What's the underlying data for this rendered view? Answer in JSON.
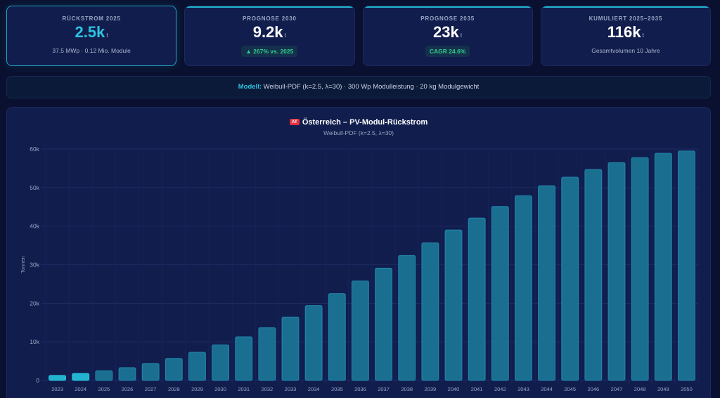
{
  "kpis": [
    {
      "label": "RÜCKSTROM 2025",
      "value": "2.5k",
      "unit": "t",
      "sub": "37.5 MWp · 0.12 Mio. Module",
      "badge": null
    },
    {
      "label": "PROGNOSE 2030",
      "value": "9.2k",
      "unit": "t",
      "sub": null,
      "badge": "▲ 267% vs. 2025"
    },
    {
      "label": "PROGNOSE 2035",
      "value": "23k",
      "unit": "t",
      "sub": null,
      "badge": "CAGR 24.6%"
    },
    {
      "label": "KUMULIERT 2025–2035",
      "value": "116k",
      "unit": "t",
      "sub": "Gesamtvolumen 10 Jahre",
      "badge": null
    }
  ],
  "model": {
    "key": "Modell:",
    "text": " Weibull-PDF (k=2.5, λ=30) · 300 Wp Modulleistung · 20 kg Modulgewicht"
  },
  "chart_header": {
    "flag": "AT",
    "title": "Österreich – PV-Modul-Rückstrom"
  },
  "colors": {
    "accent": "#2cc3dd",
    "bar_highlight": "#22b4cf",
    "bar_default": "#1a6f91",
    "badge_green": "#2ecf8c"
  },
  "chart_data": {
    "type": "bar",
    "title": "Österreich – PV-Modul-Rückstrom",
    "subtitle": "Weibull-PDF (k=2.5, λ=30)",
    "xlabel": "",
    "ylabel": "Tonnen",
    "ylim": [
      0,
      60000
    ],
    "yticks": [
      0,
      10000,
      20000,
      30000,
      40000,
      50000,
      60000
    ],
    "ytick_labels": [
      "0",
      "10k",
      "20k",
      "30k",
      "40k",
      "50k",
      "60k"
    ],
    "grid": true,
    "legend": "none",
    "categories": [
      "2023",
      "2024",
      "2025",
      "2026",
      "2027",
      "2028",
      "2029",
      "2030",
      "2031",
      "2032",
      "2033",
      "2034",
      "2035",
      "2036",
      "2037",
      "2038",
      "2039",
      "2040",
      "2041",
      "2042",
      "2043",
      "2044",
      "2045",
      "2046",
      "2047",
      "2048",
      "2049",
      "2050"
    ],
    "values": [
      1300,
      1800,
      2500,
      3300,
      4400,
      5700,
      7300,
      9200,
      11300,
      13700,
      16400,
      19400,
      22500,
      25800,
      29100,
      32400,
      35700,
      39000,
      42100,
      45100,
      47900,
      50500,
      52700,
      54700,
      56500,
      57800,
      58900,
      59500
    ],
    "highlighted": [
      "2023",
      "2024"
    ]
  }
}
